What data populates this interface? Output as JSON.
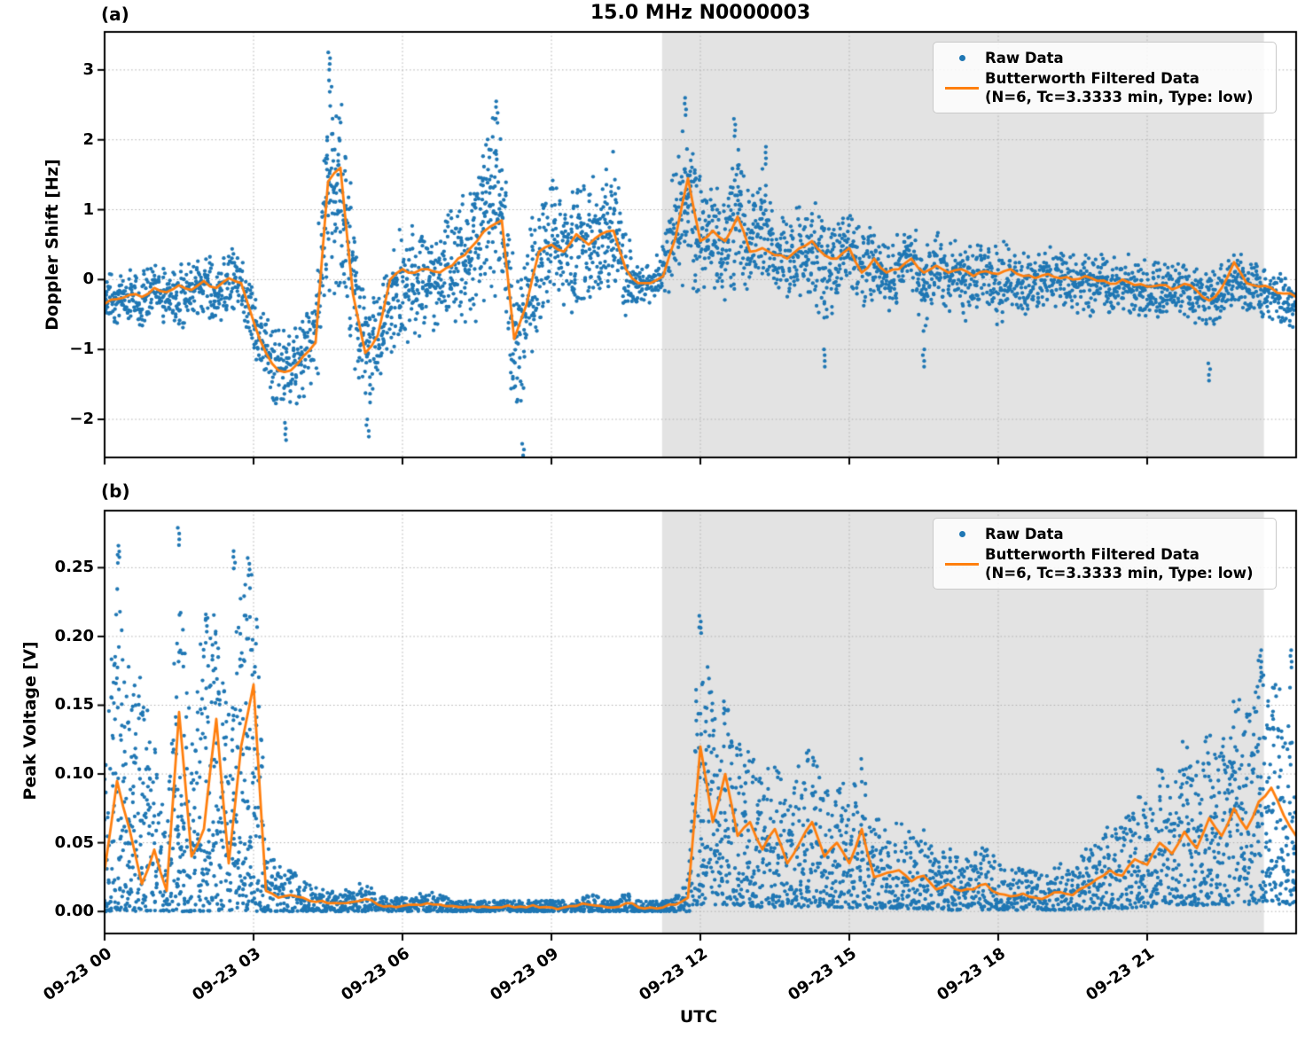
{
  "figure": {
    "title": "15.0 MHz N0000003",
    "xlabel": "UTC",
    "panel_a_label": "(a)",
    "panel_b_label": "(b)",
    "colors": {
      "raw": "#1f77b4",
      "filtered": "#ff7f0e",
      "shade": "#e3e3e3",
      "grid": "#b0b0b0",
      "spine": "#000000",
      "background": "#ffffff"
    },
    "legend": {
      "position": "upper right",
      "raw_label": "Raw Data",
      "filtered_label": "Butterworth Filtered Data",
      "filtered_sublabel": "(N=6, Tc=3.3333 min, Type: low)"
    }
  },
  "chart_data": [
    {
      "id": "doppler_shift",
      "type": "scatter",
      "panel": "(a)",
      "ylabel": "Doppler Shift [Hz]",
      "xlabel": "UTC",
      "grid": "dotted",
      "legend_position": "upper right",
      "xlim_hours": [
        0,
        24
      ],
      "ylim": [
        -2.545,
        3.544
      ],
      "yticks": [
        3,
        2,
        1,
        0,
        -1,
        -2
      ],
      "ytick_labels": [
        "3",
        "2",
        "1",
        "0",
        "−1",
        "−2"
      ],
      "xtick_hours": [
        0,
        3,
        6,
        9,
        12,
        15,
        18,
        21
      ],
      "xtick_labels": [
        "09-23 00",
        "09-23 03",
        "09-23 06",
        "09-23 09",
        "09-23 12",
        "09-23 15",
        "09-23 18",
        "09-23 21"
      ],
      "shaded_region_hours": [
        11.23,
        23.35
      ],
      "x_hours": [
        0,
        0.25,
        0.5,
        0.75,
        1,
        1.25,
        1.5,
        1.75,
        2,
        2.25,
        2.5,
        2.75,
        3,
        3.25,
        3.5,
        3.75,
        4,
        4.25,
        4.5,
        4.75,
        5,
        5.25,
        5.5,
        5.75,
        6,
        6.25,
        6.5,
        6.75,
        7,
        7.25,
        7.5,
        7.75,
        8,
        8.25,
        8.5,
        8.75,
        9,
        9.25,
        9.5,
        9.75,
        10,
        10.25,
        10.5,
        10.75,
        11,
        11.25,
        11.5,
        11.75,
        12,
        12.25,
        12.5,
        12.75,
        13,
        13.25,
        13.5,
        13.75,
        14,
        14.25,
        14.5,
        14.75,
        15,
        15.25,
        15.5,
        15.75,
        16,
        16.25,
        16.5,
        16.75,
        17,
        17.25,
        17.5,
        17.75,
        18,
        18.25,
        18.5,
        18.75,
        19,
        19.25,
        19.5,
        19.75,
        20,
        20.25,
        20.5,
        20.75,
        21,
        21.25,
        21.5,
        21.75,
        22,
        22.25,
        22.5,
        22.75,
        23,
        23.25,
        23.5,
        23.75,
        24
      ],
      "series": [
        {
          "name": "Raw Data",
          "type": "scatter",
          "envelope_upper": [
            0.1,
            0.15,
            0.18,
            0.15,
            0.3,
            0.25,
            0.3,
            0.3,
            0.45,
            0.35,
            0.5,
            0.45,
            -0.1,
            -0.45,
            -0.6,
            -0.55,
            -0.4,
            -0.2,
            3.25,
            2.9,
            1.2,
            -0.2,
            -0.1,
            0.6,
            0.9,
            0.85,
            0.95,
            0.9,
            1.1,
            1.4,
            2,
            2.45,
            2.5,
            0.4,
            0.7,
            1.3,
            1.5,
            1.35,
            1.7,
            1.55,
            1.7,
            1.9,
            1,
            0.3,
            0.25,
            0.6,
            1.8,
            2.6,
            1.6,
            1.45,
            1.3,
            2.25,
            1.2,
            1.85,
            1,
            0.9,
            1.1,
            1.2,
            1,
            0.9,
            1.15,
            0.7,
            0.9,
            0.6,
            0.7,
            0.9,
            0.6,
            0.75,
            0.6,
            0.7,
            0.5,
            0.6,
            0.55,
            0.6,
            0.5,
            0.45,
            0.5,
            0.45,
            0.4,
            0.45,
            0.4,
            0.35,
            0.4,
            0.35,
            0.3,
            0.32,
            0.28,
            0.32,
            0.25,
            0.2,
            0.3,
            0.5,
            0.3,
            0.25,
            0.2,
            0.15,
            0.1
          ],
          "envelope_lower": [
            -0.8,
            -0.72,
            -0.65,
            -0.78,
            -0.58,
            -0.65,
            -0.9,
            -0.55,
            -0.5,
            -0.88,
            -0.42,
            -0.6,
            -1.2,
            -1.6,
            -1.95,
            -1.9,
            -1.75,
            -1.55,
            -0.6,
            -0.3,
            -1.4,
            -1.9,
            -1.75,
            -1.3,
            -0.9,
            -1,
            -0.8,
            -0.85,
            -0.7,
            -0.8,
            -0.6,
            -0.5,
            -0.4,
            -2.1,
            -1.6,
            -0.8,
            -0.5,
            -0.7,
            -0.45,
            -0.6,
            -0.4,
            -0.3,
            -0.6,
            -0.45,
            -0.4,
            -0.3,
            -0.25,
            -0.15,
            -0.3,
            -0.25,
            -0.3,
            -0.15,
            -0.35,
            -0.2,
            -0.35,
            -0.4,
            -0.3,
            -0.3,
            -0.9,
            -0.4,
            -0.3,
            -0.5,
            -0.35,
            -0.5,
            -0.4,
            -0.3,
            -0.9,
            -0.4,
            -0.5,
            -0.75,
            -0.5,
            -0.4,
            -0.75,
            -0.45,
            -0.6,
            -0.5,
            -0.45,
            -0.55,
            -0.5,
            -0.75,
            -0.5,
            -0.55,
            -0.5,
            -0.6,
            -0.6,
            -0.65,
            -0.6,
            -0.55,
            -0.7,
            -0.8,
            -0.6,
            -0.45,
            -0.55,
            -0.6,
            -0.6,
            -0.7,
            -0.72
          ],
          "outliers": [
            [
              4.52,
              3.25
            ],
            [
              7.9,
              2.55
            ],
            [
              8.43,
              -2.35
            ],
            [
              5.3,
              -2.0
            ],
            [
              3.65,
              -2.05
            ],
            [
              11.7,
              2.6
            ],
            [
              12.7,
              2.3
            ],
            [
              13.3,
              1.9
            ],
            [
              14.5,
              -1.0
            ],
            [
              16.5,
              -1.0
            ],
            [
              22.25,
              -1.2
            ]
          ]
        },
        {
          "name": "Butterworth Filtered Data (N=6, Tc=3.3333 min, Type: low)",
          "type": "line",
          "values": [
            -0.35,
            -0.28,
            -0.22,
            -0.25,
            -0.12,
            -0.18,
            -0.08,
            -0.15,
            -0.02,
            -0.12,
            0.02,
            -0.05,
            -0.6,
            -1.05,
            -1.3,
            -1.3,
            -1.1,
            -0.9,
            1.4,
            1.6,
            -0.2,
            -1.05,
            -0.8,
            0,
            0.15,
            0.1,
            0.15,
            0.1,
            0.2,
            0.35,
            0.55,
            0.75,
            0.85,
            -0.85,
            -0.35,
            0.4,
            0.5,
            0.4,
            0.65,
            0.5,
            0.65,
            0.7,
            0.15,
            -0.05,
            -0.05,
            0.05,
            0.6,
            1.45,
            0.55,
            0.7,
            0.55,
            0.9,
            0.4,
            0.45,
            0.35,
            0.3,
            0.45,
            0.55,
            0.35,
            0.3,
            0.45,
            0.1,
            0.3,
            0.1,
            0.15,
            0.3,
            0.1,
            0.2,
            0.1,
            0.15,
            0.05,
            0.12,
            0.08,
            0.15,
            0.05,
            0.02,
            0.08,
            0.02,
            0,
            0.05,
            -0.02,
            -0.06,
            0,
            -0.08,
            -0.1,
            -0.08,
            -0.14,
            -0.06,
            -0.16,
            -0.3,
            -0.12,
            0.25,
            -0.05,
            -0.1,
            -0.12,
            -0.2,
            -0.25
          ]
        }
      ]
    },
    {
      "id": "peak_voltage",
      "type": "scatter",
      "panel": "(b)",
      "ylabel": "Peak Voltage [V]",
      "xlabel": "UTC",
      "grid": "dotted",
      "legend_position": "upper right",
      "xlim_hours": [
        0,
        24
      ],
      "ylim": [
        -0.016,
        0.2915
      ],
      "yticks": [
        0.25,
        0.2,
        0.15,
        0.1,
        0.05,
        0
      ],
      "ytick_labels": [
        "0.25",
        "0.20",
        "0.15",
        "0.10",
        "0.05",
        "0.00"
      ],
      "xtick_hours": [
        0,
        3,
        6,
        9,
        12,
        15,
        18,
        21
      ],
      "xtick_labels": [
        "09-23 00",
        "09-23 03",
        "09-23 06",
        "09-23 09",
        "09-23 12",
        "09-23 15",
        "09-23 18",
        "09-23 21"
      ],
      "shaded_region_hours": [
        11.23,
        23.35
      ],
      "x_hours": [
        0,
        0.25,
        0.5,
        0.75,
        1,
        1.25,
        1.5,
        1.75,
        2,
        2.25,
        2.5,
        2.75,
        3,
        3.25,
        3.5,
        3.75,
        4,
        4.25,
        4.5,
        4.75,
        5,
        5.25,
        5.5,
        5.75,
        6,
        6.25,
        6.5,
        6.75,
        7,
        7.25,
        7.5,
        7.75,
        8,
        8.25,
        8.5,
        8.75,
        9,
        9.25,
        9.5,
        9.75,
        10,
        10.25,
        10.5,
        10.75,
        11,
        11.25,
        11.5,
        11.75,
        12,
        12.25,
        12.5,
        12.75,
        13,
        13.25,
        13.5,
        13.75,
        14,
        14.25,
        14.5,
        14.75,
        15,
        15.25,
        15.5,
        15.75,
        16,
        16.25,
        16.5,
        16.75,
        17,
        17.25,
        17.5,
        17.75,
        18,
        18.25,
        18.5,
        18.75,
        19,
        19.25,
        19.5,
        19.75,
        20,
        20.25,
        20.5,
        20.75,
        21,
        21.25,
        21.5,
        21.75,
        22,
        22.25,
        22.5,
        22.75,
        23,
        23.25,
        23.5,
        23.75,
        24
      ],
      "series": [
        {
          "name": "Raw Data",
          "type": "scatter",
          "envelope_upper": [
            0.1,
            0.265,
            0.18,
            0.175,
            0.12,
            0.06,
            0.278,
            0.12,
            0.215,
            0.22,
            0.14,
            0.26,
            0.26,
            0.06,
            0.035,
            0.03,
            0.025,
            0.018,
            0.015,
            0.015,
            0.018,
            0.022,
            0.012,
            0.01,
            0.01,
            0.012,
            0.015,
            0.012,
            0.009,
            0.008,
            0.008,
            0.008,
            0.008,
            0.008,
            0.008,
            0.008,
            0.008,
            0.008,
            0.009,
            0.012,
            0.012,
            0.009,
            0.014,
            0.009,
            0.008,
            0.008,
            0.01,
            0.03,
            0.215,
            0.16,
            0.155,
            0.12,
            0.13,
            0.1,
            0.11,
            0.09,
            0.11,
            0.12,
            0.09,
            0.1,
            0.09,
            0.12,
            0.07,
            0.065,
            0.07,
            0.055,
            0.06,
            0.045,
            0.05,
            0.04,
            0.042,
            0.05,
            0.035,
            0.03,
            0.032,
            0.028,
            0.03,
            0.035,
            0.032,
            0.045,
            0.055,
            0.07,
            0.06,
            0.085,
            0.08,
            0.11,
            0.095,
            0.13,
            0.11,
            0.15,
            0.125,
            0.165,
            0.14,
            0.19,
            0.185,
            0.16,
            0.19
          ],
          "envelope_lower": [
            0,
            0,
            0,
            0,
            0,
            0,
            0,
            0,
            0,
            0,
            0,
            0,
            0,
            0,
            0,
            0,
            0,
            0,
            0,
            0,
            0,
            0,
            0,
            0,
            0,
            0,
            0,
            0,
            0,
            0,
            0,
            0,
            0,
            0,
            0,
            0,
            0,
            0,
            0,
            0,
            0,
            0,
            0,
            0,
            0,
            0,
            0,
            0,
            0.005,
            0.005,
            0.005,
            0.004,
            0.004,
            0.003,
            0.003,
            0.003,
            0.003,
            0.004,
            0.003,
            0.003,
            0.002,
            0.003,
            0.002,
            0.002,
            0.002,
            0.002,
            0.002,
            0.001,
            0.001,
            0.001,
            0.001,
            0.001,
            0.001,
            0.001,
            0.001,
            0.001,
            0.001,
            0.001,
            0.001,
            0.001,
            0.002,
            0.002,
            0.002,
            0.003,
            0.003,
            0.004,
            0.004,
            0.005,
            0.004,
            0.005,
            0.005,
            0.005,
            0.005,
            0.006,
            0.006,
            0.005,
            0.005
          ],
          "outliers": [
            [
              0.28,
              0.266
            ],
            [
              1.5,
              0.279
            ],
            [
              2.05,
              0.216
            ],
            [
              2.6,
              0.262
            ],
            [
              2.9,
              0.257
            ],
            [
              12.0,
              0.215
            ],
            [
              23.3,
              0.19
            ],
            [
              23.9,
              0.19
            ]
          ]
        },
        {
          "name": "Butterworth Filtered Data (N=6, Tc=3.3333 min, Type: low)",
          "type": "line",
          "values": [
            0.03,
            0.095,
            0.06,
            0.02,
            0.045,
            0.015,
            0.145,
            0.04,
            0.06,
            0.14,
            0.035,
            0.12,
            0.165,
            0.015,
            0.01,
            0.012,
            0.01,
            0.007,
            0.006,
            0.006,
            0.007,
            0.009,
            0.005,
            0.004,
            0.004,
            0.005,
            0.006,
            0.005,
            0.004,
            0.003,
            0.003,
            0.003,
            0.003,
            0.003,
            0.003,
            0.003,
            0.003,
            0.003,
            0.004,
            0.005,
            0.004,
            0.003,
            0.006,
            0.003,
            0.003,
            0.003,
            0.005,
            0.01,
            0.12,
            0.065,
            0.1,
            0.055,
            0.065,
            0.045,
            0.06,
            0.035,
            0.05,
            0.065,
            0.04,
            0.05,
            0.035,
            0.06,
            0.025,
            0.028,
            0.03,
            0.022,
            0.026,
            0.016,
            0.02,
            0.015,
            0.016,
            0.02,
            0.013,
            0.011,
            0.013,
            0.01,
            0.011,
            0.014,
            0.012,
            0.018,
            0.024,
            0.03,
            0.026,
            0.038,
            0.034,
            0.05,
            0.042,
            0.058,
            0.046,
            0.068,
            0.055,
            0.075,
            0.06,
            0.08,
            0.09,
            0.07,
            0.055
          ]
        }
      ]
    }
  ]
}
